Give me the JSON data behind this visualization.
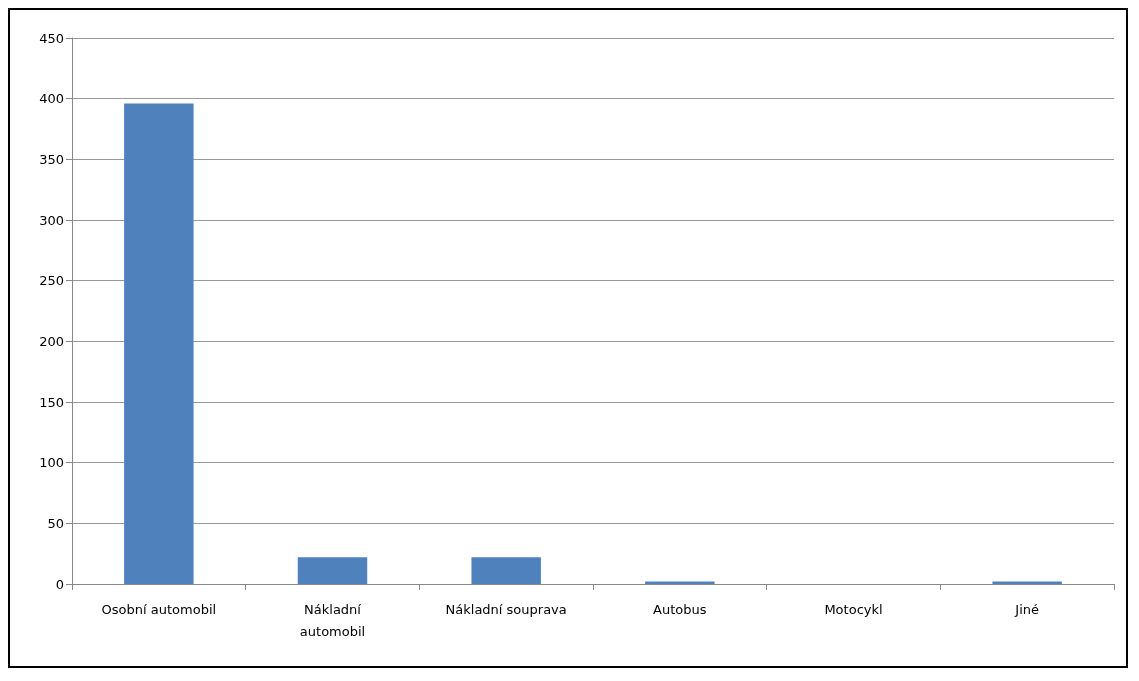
{
  "chart_data": {
    "type": "bar",
    "categories": [
      "Osobní automobil",
      "Nákladní\nautomobil",
      "Nákladní souprava",
      "Autobus",
      "Motocykl",
      "Jiné"
    ],
    "values": [
      396,
      22,
      22,
      2,
      0,
      2
    ],
    "color": "#4f81bd",
    "ylim": [
      0,
      450
    ],
    "yticks": [
      0,
      50,
      100,
      150,
      200,
      250,
      300,
      350,
      400,
      450
    ],
    "grid": "y"
  }
}
